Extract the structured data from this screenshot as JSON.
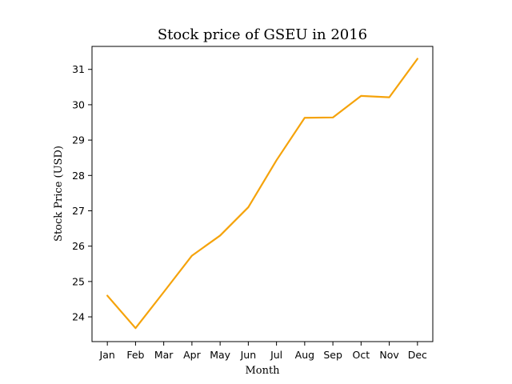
{
  "chart_data": {
    "type": "line",
    "title": "Stock price of GSEU in 2016",
    "xlabel": "Month",
    "ylabel": "Stock Price (USD)",
    "categories": [
      "Jan",
      "Feb",
      "Mar",
      "Apr",
      "May",
      "Jun",
      "Jul",
      "Aug",
      "Sep",
      "Oct",
      "Nov",
      "Dec"
    ],
    "series": [
      {
        "values": [
          24.6,
          23.68,
          24.7,
          25.73,
          26.3,
          27.1,
          28.43,
          29.63,
          29.64,
          30.25,
          30.21,
          31.3
        ],
        "color": "#f5a30b"
      }
    ],
    "yticks": [
      24,
      25,
      26,
      27,
      28,
      29,
      30,
      31
    ],
    "ylim": [
      23.3,
      31.65
    ],
    "grid": false,
    "legend": "none"
  }
}
